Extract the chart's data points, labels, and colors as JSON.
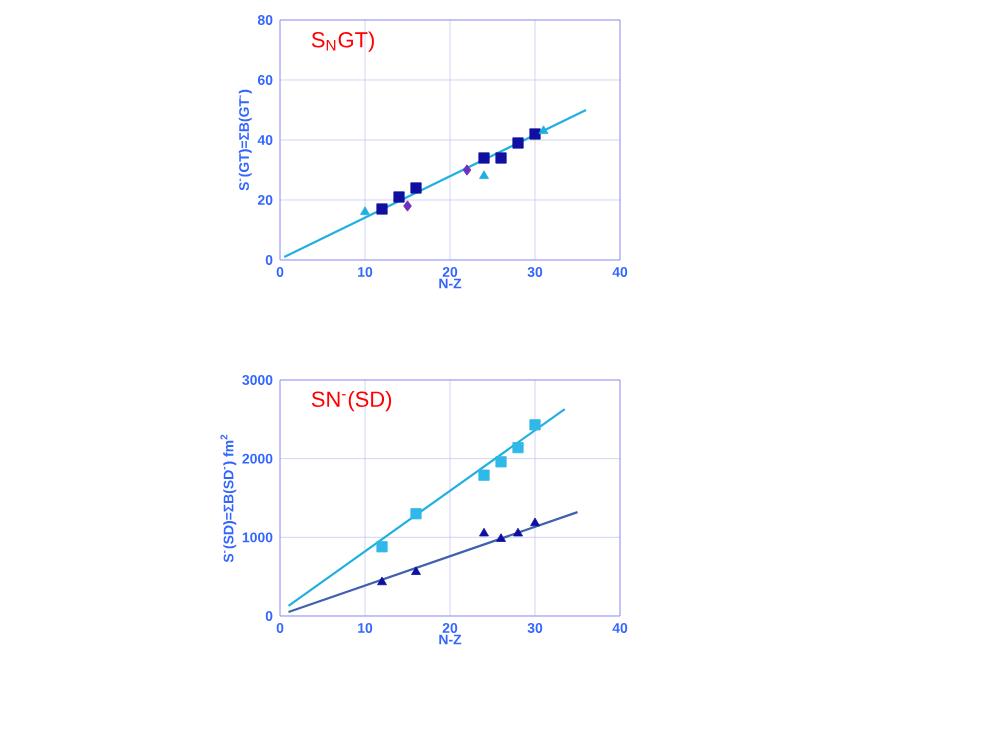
{
  "chart_data": [
    {
      "type": "scatter",
      "title": "S$_{N}$GT)",
      "xlabel": "N-Z",
      "ylabel": "S$^{-}$(GT)=ΣB(GT$^{-}$)",
      "xlim": [
        0,
        40
      ],
      "ylim": [
        0,
        80
      ],
      "xticks": [
        0,
        10,
        20,
        30,
        40
      ],
      "yticks": [
        0,
        20,
        40,
        60,
        80
      ],
      "grid": true,
      "series": [
        {
          "marker": "square",
          "color": "#1010a0",
          "x": [
            12,
            14,
            16,
            24,
            26,
            28,
            30
          ],
          "values": [
            17,
            21,
            24,
            34,
            34,
            39,
            42
          ]
        },
        {
          "marker": "diamond",
          "color": "#7030c0",
          "x": [
            15,
            22
          ],
          "values": [
            18,
            30
          ]
        },
        {
          "marker": "triangle",
          "color": "#20b0e0",
          "x": [
            10,
            24,
            31
          ],
          "values": [
            16,
            28,
            43
          ]
        },
        {
          "type": "line",
          "color": "#20b0e0",
          "x": [
            0.5,
            36
          ],
          "values": [
            1,
            50
          ]
        }
      ]
    },
    {
      "type": "scatter",
      "title": "SN$^{-}$(SD)",
      "xlabel": "N-Z",
      "ylabel": "S$^{-}$(SD)=ΣB(SD$^{-}$)  fm$^{2}$",
      "xlim": [
        0,
        40
      ],
      "ylim": [
        0,
        3000
      ],
      "xticks": [
        0,
        10,
        20,
        30,
        40
      ],
      "yticks": [
        0,
        1000,
        2000,
        3000
      ],
      "grid": true,
      "series": [
        {
          "marker": "square",
          "color": "#30b8e8",
          "x": [
            12,
            16,
            24,
            26,
            28,
            30
          ],
          "values": [
            880,
            1300,
            1790,
            1960,
            2140,
            2430
          ]
        },
        {
          "type": "line",
          "color": "#20b0e0",
          "x": [
            1,
            33.5
          ],
          "values": [
            130,
            2630
          ]
        },
        {
          "marker": "triangle",
          "color": "#1010a0",
          "x": [
            12,
            16,
            24,
            26,
            28,
            30
          ],
          "values": [
            430,
            560,
            1050,
            980,
            1050,
            1180
          ]
        },
        {
          "type": "line",
          "color": "#4060b0",
          "x": [
            1,
            35
          ],
          "values": [
            50,
            1320
          ]
        }
      ]
    }
  ]
}
